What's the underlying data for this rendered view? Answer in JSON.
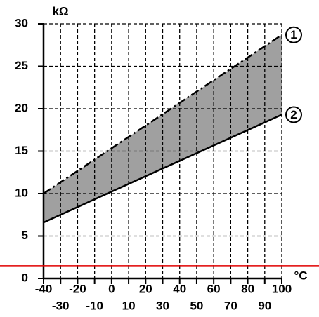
{
  "chart_data": {
    "type": "line",
    "y_label": "kΩ",
    "x_label": "°C",
    "x": [
      -40,
      100
    ],
    "series": [
      {
        "name": "1",
        "color": "#000000",
        "dash": "dashdot",
        "values": [
          10.0,
          28.7
        ]
      },
      {
        "name": "2",
        "color": "#000000",
        "dash": "solid",
        "values": [
          6.6,
          19.3
        ]
      }
    ],
    "fill_between": true,
    "fill_color": "#a0a0a0",
    "xlim": [
      -40,
      100
    ],
    "ylim": [
      0,
      30
    ],
    "xticks": [
      -40,
      -30,
      -20,
      -10,
      0,
      10,
      20,
      30,
      40,
      50,
      60,
      70,
      80,
      90,
      100
    ],
    "yticks": [
      0,
      5,
      10,
      15,
      20,
      25,
      30
    ],
    "grid": true,
    "hline": 1.5,
    "hline_color": "#e00000"
  }
}
